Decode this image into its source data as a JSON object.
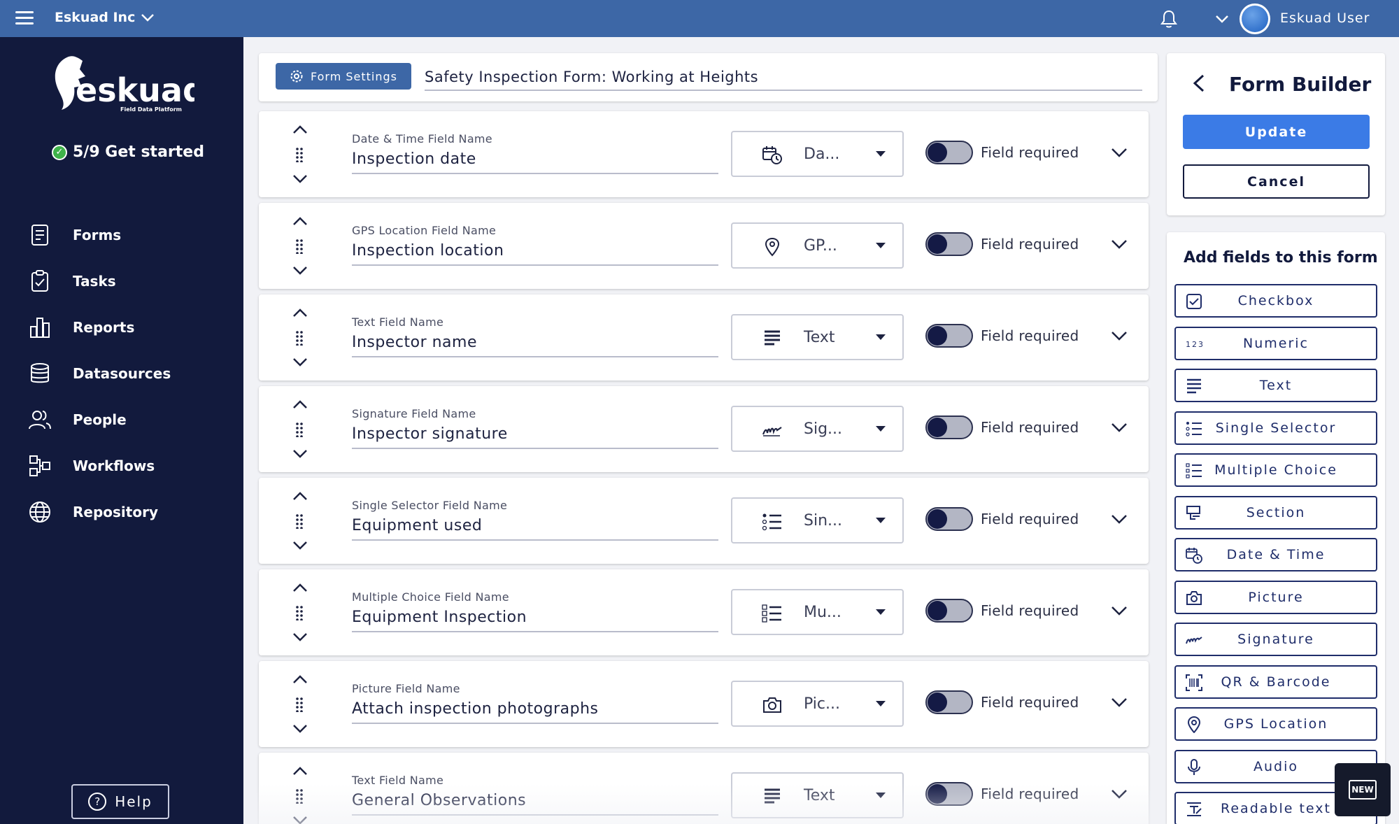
{
  "topbar": {
    "org": "Eskuad Inc",
    "username": "Eskuad User"
  },
  "sidebar": {
    "logo_text": "eskuad",
    "logo_tagline": "Field Data Platform",
    "get_started": "5/9 Get started",
    "items": [
      {
        "label": "Forms",
        "icon": "form-icon"
      },
      {
        "label": "Tasks",
        "icon": "clipboard-check-icon"
      },
      {
        "label": "Reports",
        "icon": "bar-chart-icon"
      },
      {
        "label": "Datasources",
        "icon": "database-icon"
      },
      {
        "label": "People",
        "icon": "people-icon"
      },
      {
        "label": "Workflows",
        "icon": "workflow-icon"
      },
      {
        "label": "Repository",
        "icon": "globe-icon"
      }
    ],
    "help_label": "Help"
  },
  "form": {
    "settings_label": "Form Settings",
    "title": "Safety Inspection Form: Working at Heights",
    "required_label": "Field required",
    "fields": [
      {
        "type_label": "Date & Time Field Name",
        "name": "Inspection date",
        "select_label": "Da...",
        "icon": "date-time-icon"
      },
      {
        "type_label": "GPS Location Field Name",
        "name": "Inspection location",
        "select_label": "GP...",
        "icon": "location-pin-icon"
      },
      {
        "type_label": "Text Field Name",
        "name": "Inspector name",
        "select_label": "Text",
        "icon": "text-lines-icon"
      },
      {
        "type_label": "Signature Field Name",
        "name": "Inspector signature",
        "select_label": "Sig...",
        "icon": "signature-icon"
      },
      {
        "type_label": "Single Selector Field Name",
        "name": "Equipment used",
        "select_label": "Sin...",
        "icon": "single-selector-icon"
      },
      {
        "type_label": "Multiple Choice Field Name",
        "name": "Equipment Inspection",
        "select_label": "Mu...",
        "icon": "multiple-choice-icon"
      },
      {
        "type_label": "Picture Field Name",
        "name": "Attach inspection photographs",
        "select_label": "Pic...",
        "icon": "camera-icon"
      },
      {
        "type_label": "Text Field Name",
        "name": "General Observations",
        "select_label": "Text",
        "icon": "text-lines-icon"
      }
    ]
  },
  "builder": {
    "title": "Form Builder",
    "update_label": "Update",
    "cancel_label": "Cancel"
  },
  "add_fields": {
    "title": "Add fields to this form",
    "items": [
      {
        "label": "Checkbox",
        "icon": "checkbox-icon"
      },
      {
        "label": "Numeric",
        "icon": "numeric-icon",
        "icon_text": "123"
      },
      {
        "label": "Text",
        "icon": "text-lines-icon"
      },
      {
        "label": "Single Selector",
        "icon": "single-selector-icon"
      },
      {
        "label": "Multiple Choice",
        "icon": "multiple-choice-icon"
      },
      {
        "label": "Section",
        "icon": "section-icon"
      },
      {
        "label": "Date & Time",
        "icon": "date-time-icon"
      },
      {
        "label": "Picture",
        "icon": "camera-icon"
      },
      {
        "label": "Signature",
        "icon": "signature-icon"
      },
      {
        "label": "QR & Barcode",
        "icon": "barcode-icon"
      },
      {
        "label": "GPS Location",
        "icon": "location-pin-icon"
      },
      {
        "label": "Audio",
        "icon": "microphone-icon"
      },
      {
        "label": "Readable text",
        "icon": "readable-text-icon"
      }
    ]
  },
  "new_badge": "NEW",
  "colors": {
    "topbar": "#3d67a6",
    "sidebar": "#121a3d",
    "accent": "#3b7be6",
    "toggle_knob": "#141a45"
  }
}
